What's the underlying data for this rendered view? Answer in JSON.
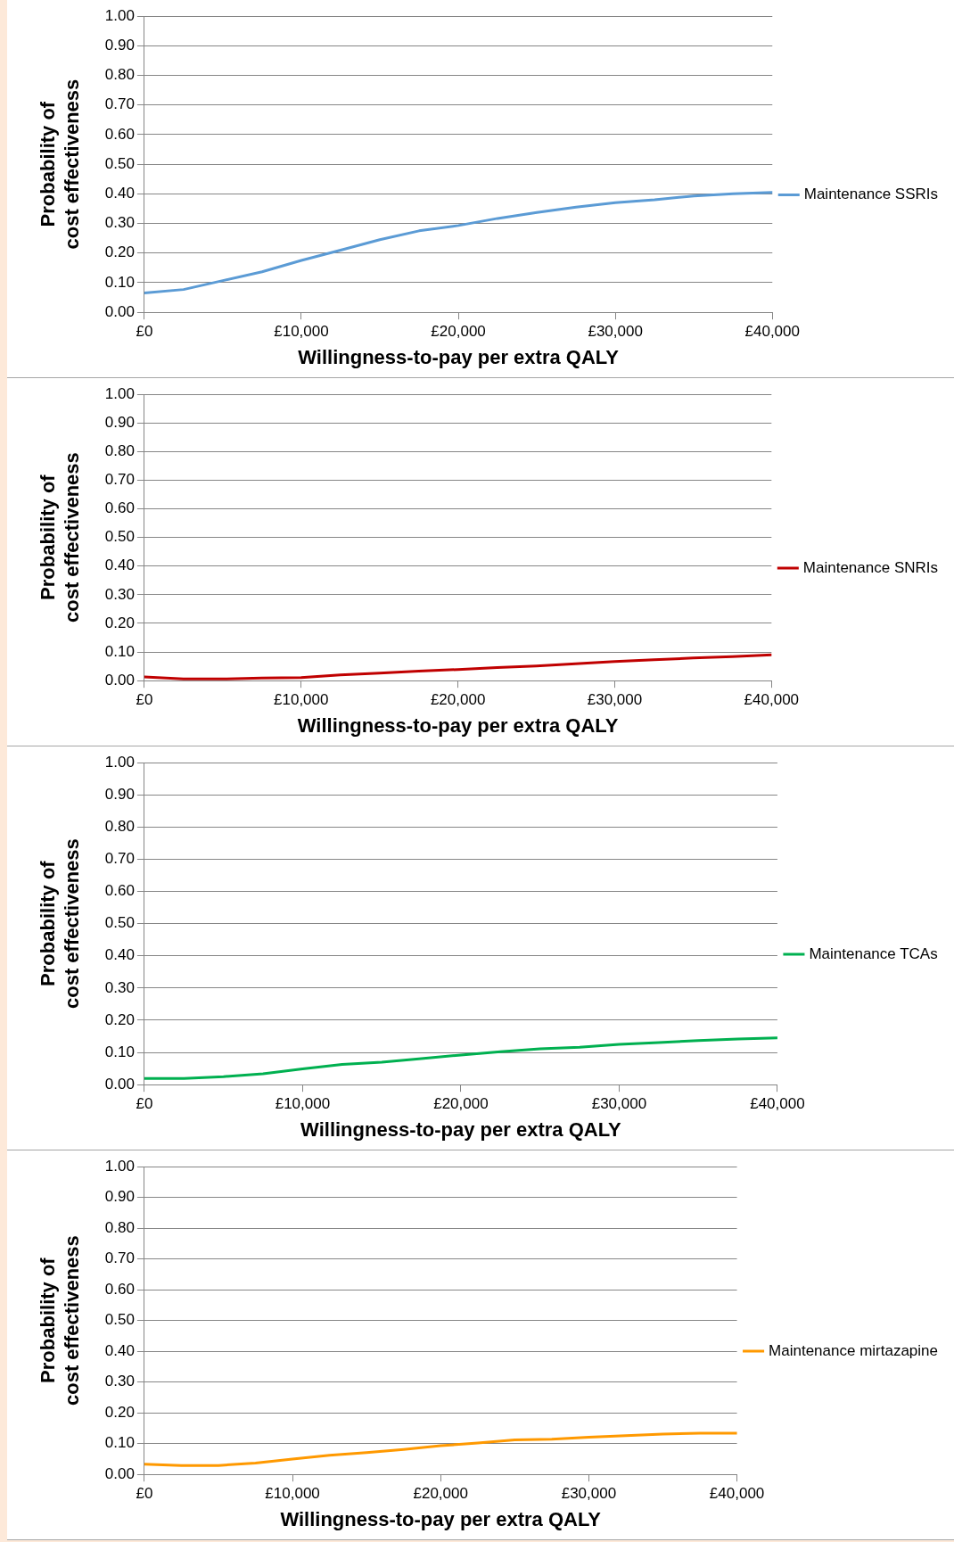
{
  "chart_data": [
    {
      "type": "line",
      "xlabel": "Willingness-to-pay per extra QALY",
      "ylabel": "Probability of cost effectiveness",
      "x": [
        0,
        2500,
        5000,
        7500,
        10000,
        12500,
        15000,
        17500,
        20000,
        22500,
        25000,
        27500,
        30000,
        32500,
        35000,
        37500,
        40000
      ],
      "series": [
        {
          "name": "Maintenance SSRIs",
          "color": "#5b9bd5",
          "values": [
            0.065,
            0.077,
            0.107,
            0.137,
            0.175,
            0.21,
            0.245,
            0.275,
            0.293,
            0.317,
            0.337,
            0.355,
            0.37,
            0.38,
            0.393,
            0.4,
            0.405
          ]
        }
      ],
      "xlim": [
        0,
        40000
      ],
      "xticks": [
        {
          "value": 0,
          "label": "£0"
        },
        {
          "value": 10000,
          "label": "£10,000"
        },
        {
          "value": 20000,
          "label": "£20,000"
        },
        {
          "value": 30000,
          "label": "£30,000"
        },
        {
          "value": 40000,
          "label": "£40,000"
        }
      ],
      "ylim": [
        0,
        1
      ],
      "yticks": [
        {
          "value": 0,
          "label": "0.00"
        },
        {
          "value": 0.1,
          "label": "0.10"
        },
        {
          "value": 0.2,
          "label": "0.20"
        },
        {
          "value": 0.3,
          "label": "0.30"
        },
        {
          "value": 0.4,
          "label": "0.40"
        },
        {
          "value": 0.5,
          "label": "0.50"
        },
        {
          "value": 0.6,
          "label": "0.60"
        },
        {
          "value": 0.7,
          "label": "0.70"
        },
        {
          "value": 0.8,
          "label": "0.80"
        },
        {
          "value": 0.9,
          "label": "0.90"
        },
        {
          "value": 1,
          "label": "1.00"
        }
      ],
      "grid": "y",
      "legend": "right",
      "marker": "none"
    },
    {
      "type": "line",
      "xlabel": "Willingness-to-pay per extra QALY",
      "ylabel": "Probability of cost effectiveness",
      "x": [
        0,
        2500,
        5000,
        7500,
        10000,
        12500,
        15000,
        17500,
        20000,
        22500,
        25000,
        27500,
        30000,
        32500,
        35000,
        37500,
        40000
      ],
      "series": [
        {
          "name": "Maintenance SNRIs",
          "color": "#c00000",
          "values": [
            0.013,
            0.006,
            0.006,
            0.009,
            0.011,
            0.02,
            0.026,
            0.033,
            0.039,
            0.046,
            0.051,
            0.059,
            0.067,
            0.073,
            0.079,
            0.084,
            0.09
          ]
        }
      ],
      "xlim": [
        0,
        40000
      ],
      "xticks": [
        {
          "value": 0,
          "label": "£0"
        },
        {
          "value": 10000,
          "label": "£10,000"
        },
        {
          "value": 20000,
          "label": "£20,000"
        },
        {
          "value": 30000,
          "label": "£30,000"
        },
        {
          "value": 40000,
          "label": "£40,000"
        }
      ],
      "ylim": [
        0,
        1
      ],
      "yticks": [
        {
          "value": 0,
          "label": "0.00"
        },
        {
          "value": 0.1,
          "label": "0.10"
        },
        {
          "value": 0.2,
          "label": "0.20"
        },
        {
          "value": 0.3,
          "label": "0.30"
        },
        {
          "value": 0.4,
          "label": "0.40"
        },
        {
          "value": 0.5,
          "label": "0.50"
        },
        {
          "value": 0.6,
          "label": "0.60"
        },
        {
          "value": 0.7,
          "label": "0.70"
        },
        {
          "value": 0.8,
          "label": "0.80"
        },
        {
          "value": 0.9,
          "label": "0.90"
        },
        {
          "value": 1,
          "label": "1.00"
        }
      ],
      "grid": "y",
      "legend": "right",
      "marker": "none"
    },
    {
      "type": "line",
      "xlabel": "Willingness-to-pay per extra QALY",
      "ylabel": "Probability of cost effectiveness",
      "x": [
        0,
        2500,
        5000,
        7500,
        10000,
        12500,
        15000,
        17500,
        20000,
        22500,
        25000,
        27500,
        30000,
        32500,
        35000,
        37500,
        40000
      ],
      "series": [
        {
          "name": "Maintenance TCAs",
          "color": "#00b050",
          "values": [
            0.019,
            0.019,
            0.025,
            0.034,
            0.049,
            0.063,
            0.07,
            0.081,
            0.092,
            0.102,
            0.111,
            0.116,
            0.125,
            0.131,
            0.137,
            0.142,
            0.145
          ]
        }
      ],
      "xlim": [
        0,
        40000
      ],
      "xticks": [
        {
          "value": 0,
          "label": "£0"
        },
        {
          "value": 10000,
          "label": "£10,000"
        },
        {
          "value": 20000,
          "label": "£20,000"
        },
        {
          "value": 30000,
          "label": "£30,000"
        },
        {
          "value": 40000,
          "label": "£40,000"
        }
      ],
      "ylim": [
        0,
        1
      ],
      "yticks": [
        {
          "value": 0,
          "label": "0.00"
        },
        {
          "value": 0.1,
          "label": "0.10"
        },
        {
          "value": 0.2,
          "label": "0.20"
        },
        {
          "value": 0.3,
          "label": "0.30"
        },
        {
          "value": 0.4,
          "label": "0.40"
        },
        {
          "value": 0.5,
          "label": "0.50"
        },
        {
          "value": 0.6,
          "label": "0.60"
        },
        {
          "value": 0.7,
          "label": "0.70"
        },
        {
          "value": 0.8,
          "label": "0.80"
        },
        {
          "value": 0.9,
          "label": "0.90"
        },
        {
          "value": 1,
          "label": "1.00"
        }
      ],
      "grid": "y",
      "legend": "right",
      "marker": "none"
    },
    {
      "type": "line",
      "xlabel": "Willingness-to-pay per extra QALY",
      "ylabel": "Probability of cost effectiveness",
      "x": [
        0,
        2500,
        5000,
        7500,
        10000,
        12500,
        15000,
        17500,
        20000,
        22500,
        25000,
        27500,
        30000,
        32500,
        35000,
        37500,
        40000
      ],
      "series": [
        {
          "name": "Maintenance mirtazapine",
          "color": "#ff9900",
          "values": [
            0.033,
            0.029,
            0.029,
            0.037,
            0.05,
            0.062,
            0.071,
            0.081,
            0.093,
            0.102,
            0.112,
            0.114,
            0.121,
            0.126,
            0.131,
            0.134,
            0.134
          ]
        }
      ],
      "xlim": [
        0,
        40000
      ],
      "xticks": [
        {
          "value": 0,
          "label": "£0"
        },
        {
          "value": 10000,
          "label": "£10,000"
        },
        {
          "value": 20000,
          "label": "£20,000"
        },
        {
          "value": 30000,
          "label": "£30,000"
        },
        {
          "value": 40000,
          "label": "£40,000"
        }
      ],
      "ylim": [
        0,
        1
      ],
      "yticks": [
        {
          "value": 0,
          "label": "0.00"
        },
        {
          "value": 0.1,
          "label": "0.10"
        },
        {
          "value": 0.2,
          "label": "0.20"
        },
        {
          "value": 0.3,
          "label": "0.30"
        },
        {
          "value": 0.4,
          "label": "0.40"
        },
        {
          "value": 0.5,
          "label": "0.50"
        },
        {
          "value": 0.6,
          "label": "0.60"
        },
        {
          "value": 0.7,
          "label": "0.70"
        },
        {
          "value": 0.8,
          "label": "0.80"
        },
        {
          "value": 0.9,
          "label": "0.90"
        },
        {
          "value": 1,
          "label": "1.00"
        }
      ],
      "grid": "y",
      "legend": "right",
      "marker": "none"
    }
  ]
}
